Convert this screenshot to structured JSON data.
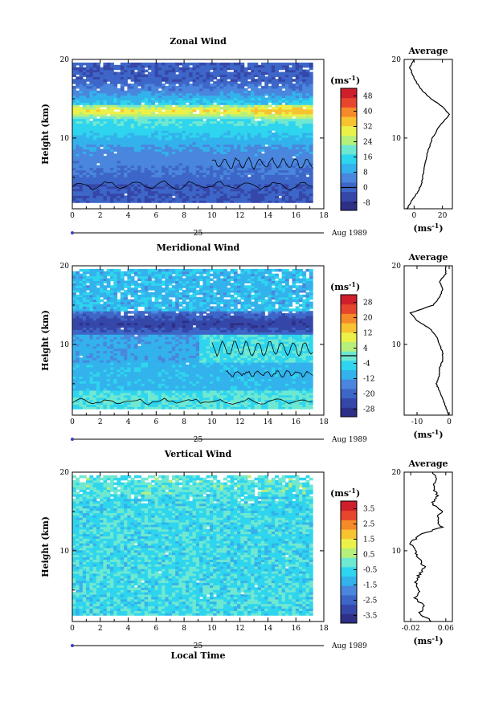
{
  "chart_data": [
    {
      "type": "heatmap",
      "title": "Zonal Wind",
      "ylabel": "Height (km)",
      "x_ticks": [
        "0",
        "2",
        "4",
        "6",
        "8",
        "10",
        "12",
        "14",
        "16",
        "18"
      ],
      "y_ticks": [
        "10",
        "20"
      ],
      "xlim": [
        0,
        18
      ],
      "ylim": [
        1,
        20
      ],
      "date_label": "25",
      "month_label": "Aug 1989",
      "colorbar": {
        "unit_label": "(ms",
        "unit_exp": "-1",
        "unit_close": ")",
        "tick_labels": [
          "48",
          "40",
          "32",
          "24",
          "16",
          "8",
          "0",
          "-8"
        ],
        "range": [
          -12,
          52
        ],
        "contour_at": 0
      },
      "profile": {
        "title": "Average",
        "x_ticks": [
          "0",
          "20"
        ],
        "xlim": [
          -7,
          27
        ],
        "unit_label": "(ms",
        "unit_exp": "-1",
        "unit_close": ")",
        "heights": [
          1,
          2,
          3,
          4,
          5,
          6,
          7,
          8,
          9,
          10,
          11,
          12,
          13,
          14,
          15,
          16,
          17,
          18,
          19,
          20
        ],
        "values": [
          -5,
          -2,
          2,
          5,
          6,
          7,
          8,
          9,
          11,
          13,
          16,
          20,
          25,
          20,
          12,
          6,
          2,
          -1,
          -3,
          0
        ]
      }
    },
    {
      "type": "heatmap",
      "title": "Meridional Wind",
      "ylabel": "Height (km)",
      "x_ticks": [
        "0",
        "2",
        "4",
        "6",
        "8",
        "10",
        "12",
        "14",
        "16",
        "18"
      ],
      "y_ticks": [
        "10",
        "20"
      ],
      "xlim": [
        0,
        18
      ],
      "ylim": [
        1,
        20
      ],
      "date_label": "25",
      "month_label": "Aug 1989",
      "colorbar": {
        "unit_label": "(ms",
        "unit_exp": "-1",
        "unit_close": ")",
        "tick_labels": [
          "28",
          "20",
          "12",
          "4",
          "-4",
          "-12",
          "-20",
          "-28"
        ],
        "range": [
          -32,
          32
        ],
        "contour_at": 0
      },
      "profile": {
        "title": "Average",
        "x_ticks": [
          "-10",
          "0"
        ],
        "xlim": [
          -14,
          1
        ],
        "unit_label": "(ms",
        "unit_exp": "-1",
        "unit_close": ")",
        "heights": [
          1,
          2,
          3,
          4,
          5,
          6,
          7,
          8,
          9,
          10,
          11,
          12,
          13,
          14,
          15,
          16,
          17,
          18,
          19,
          20
        ],
        "values": [
          0,
          -1,
          -2,
          -3,
          -4,
          -3,
          -3,
          -2,
          -2,
          -3,
          -4,
          -6,
          -10,
          -12,
          -5,
          -3,
          -2,
          -3,
          -1,
          -1
        ]
      }
    },
    {
      "type": "heatmap",
      "title": "Vertical Wind",
      "ylabel": "Height (km)",
      "xlabel": "Local Time",
      "x_ticks": [
        "0",
        "2",
        "4",
        "6",
        "8",
        "10",
        "12",
        "14",
        "16",
        "18"
      ],
      "y_ticks": [
        "10",
        "20"
      ],
      "xlim": [
        0,
        18
      ],
      "ylim": [
        1,
        20
      ],
      "date_label": "25",
      "month_label": "Aug 1989",
      "colorbar": {
        "unit_label": "(ms",
        "unit_exp": "-1",
        "unit_close": ")",
        "tick_labels": [
          "3.5",
          "2.5",
          "1.5",
          "0.5",
          "-0.5",
          "-1.5",
          "-2.5",
          "-3.5"
        ],
        "range": [
          -4,
          4
        ],
        "contour_at": null
      },
      "profile": {
        "title": "Average",
        "x_ticks": [
          "-0.02",
          "0.06"
        ],
        "xlim": [
          -0.035,
          0.075
        ],
        "unit_label": "(ms",
        "unit_exp": "-1",
        "unit_close": ")",
        "heights": [
          1,
          2,
          3,
          4,
          5,
          6,
          7,
          8,
          9,
          10,
          11,
          12,
          13,
          14,
          15,
          16,
          17,
          18,
          19,
          20
        ],
        "values": [
          0.03,
          0.0,
          0.01,
          -0.01,
          0.0,
          -0.01,
          0.0,
          0.01,
          0.0,
          -0.01,
          -0.02,
          0.0,
          0.05,
          0.04,
          0.05,
          0.03,
          0.04,
          0.03,
          0.04,
          0.03
        ]
      }
    }
  ]
}
